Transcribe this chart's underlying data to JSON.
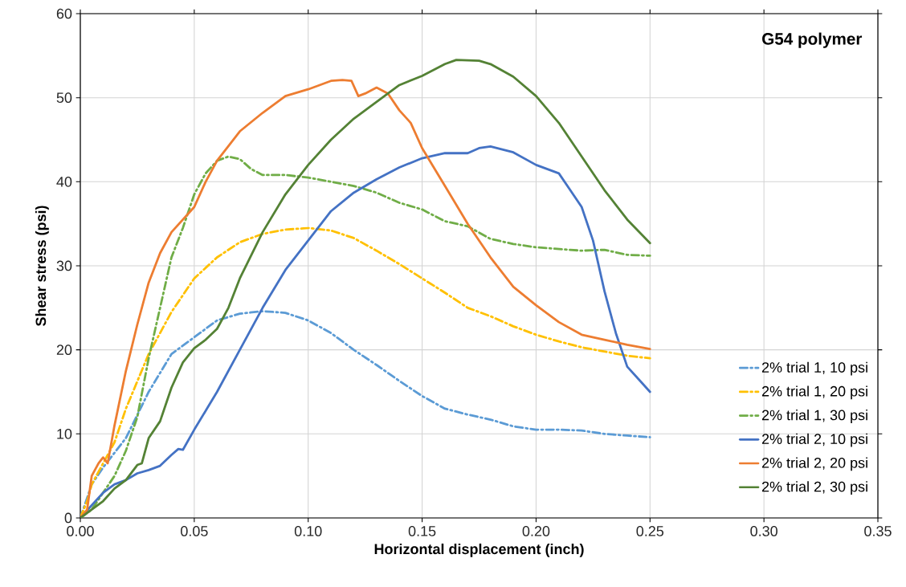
{
  "chart_data": {
    "type": "line",
    "title": "G54 polymer",
    "xlabel": "Horizontal displacement (inch)",
    "ylabel": "Shear stress (psi)",
    "xlim": [
      0,
      0.35
    ],
    "xticks": [
      {
        "value": 0,
        "label": "0.00"
      },
      {
        "value": 0.05,
        "label": "0.05"
      },
      {
        "value": 0.1,
        "label": "0.10"
      },
      {
        "value": 0.15,
        "label": "0.15"
      },
      {
        "value": 0.2,
        "label": "0.20"
      },
      {
        "value": 0.25,
        "label": "0.25"
      },
      {
        "value": 0.3,
        "label": "0.30"
      },
      {
        "value": 0.35,
        "label": "0.35"
      }
    ],
    "ylim": [
      0,
      60
    ],
    "yticks": [
      0,
      10,
      20,
      30,
      40,
      50,
      60
    ],
    "grid": true,
    "legend": "bottom right",
    "marker": "none",
    "series": [
      {
        "name": "2% trial 1, 10 psi",
        "color": "#5b9bd5",
        "line_style": "dashed",
        "x": [
          0,
          0.005,
          0.01,
          0.02,
          0.03,
          0.04,
          0.05,
          0.06,
          0.07,
          0.08,
          0.09,
          0.1,
          0.11,
          0.12,
          0.13,
          0.14,
          0.15,
          0.16,
          0.17,
          0.18,
          0.19,
          0.2,
          0.21,
          0.22,
          0.23,
          0.24,
          0.25
        ],
        "values": [
          0,
          4,
          6,
          9.5,
          15,
          19.5,
          21.5,
          23.5,
          24.3,
          24.6,
          24.4,
          23.5,
          22,
          20,
          18.2,
          16.3,
          14.5,
          13,
          12.3,
          11.7,
          10.9,
          10.5,
          10.5,
          10.4,
          10,
          9.8,
          9.6
        ]
      },
      {
        "name": "2% trial 1, 20 psi",
        "color": "#ffc000",
        "line_style": "dashed",
        "x": [
          0,
          0.003,
          0.005,
          0.01,
          0.015,
          0.02,
          0.03,
          0.04,
          0.05,
          0.06,
          0.07,
          0.08,
          0.09,
          0.1,
          0.11,
          0.12,
          0.13,
          0.14,
          0.15,
          0.16,
          0.17,
          0.18,
          0.19,
          0.2,
          0.21,
          0.22,
          0.23,
          0.24,
          0.25
        ],
        "values": [
          0,
          2,
          4,
          6.5,
          9,
          13,
          19.5,
          24.5,
          28.5,
          31,
          32.8,
          33.8,
          34.3,
          34.5,
          34.2,
          33.3,
          31.8,
          30.2,
          28.5,
          26.8,
          25,
          24,
          22.8,
          21.8,
          21,
          20.3,
          19.8,
          19.3,
          19
        ]
      },
      {
        "name": "2% trial 1, 30 psi",
        "color": "#70ad47",
        "line_style": "dashed",
        "x": [
          0,
          0.005,
          0.01,
          0.015,
          0.02,
          0.025,
          0.03,
          0.035,
          0.04,
          0.045,
          0.05,
          0.055,
          0.06,
          0.065,
          0.07,
          0.075,
          0.08,
          0.09,
          0.1,
          0.11,
          0.12,
          0.13,
          0.14,
          0.15,
          0.16,
          0.17,
          0.18,
          0.19,
          0.2,
          0.21,
          0.22,
          0.23,
          0.24,
          0.25
        ],
        "values": [
          0,
          1,
          3,
          5,
          8,
          12,
          19,
          25,
          31,
          34.5,
          38.5,
          41,
          42.5,
          43,
          42.7,
          41.5,
          40.8,
          40.8,
          40.5,
          40,
          39.5,
          38.7,
          37.5,
          36.7,
          35.3,
          34.7,
          33.2,
          32.6,
          32.2,
          32,
          31.8,
          31.9,
          31.3,
          31.2
        ]
      },
      {
        "name": "2% trial 2, 10 psi",
        "color": "#4472c4",
        "line_style": "solid",
        "x": [
          0,
          0.005,
          0.01,
          0.015,
          0.02,
          0.025,
          0.03,
          0.035,
          0.04,
          0.043,
          0.045,
          0.05,
          0.06,
          0.07,
          0.08,
          0.09,
          0.1,
          0.11,
          0.12,
          0.13,
          0.14,
          0.15,
          0.16,
          0.17,
          0.175,
          0.18,
          0.19,
          0.2,
          0.21,
          0.215,
          0.22,
          0.225,
          0.23,
          0.235,
          0.24,
          0.245,
          0.25
        ],
        "values": [
          0,
          1.5,
          3,
          4,
          4.5,
          5.3,
          5.7,
          6.2,
          7.5,
          8.2,
          8.1,
          10.5,
          15,
          20,
          25,
          29.5,
          33,
          36.5,
          38.7,
          40.3,
          41.7,
          42.8,
          43.4,
          43.4,
          44,
          44.2,
          43.5,
          42,
          41,
          39,
          37,
          33,
          27,
          22,
          18,
          16.5,
          15
        ]
      },
      {
        "name": "2% trial 2, 20 psi",
        "color": "#ed7d31",
        "line_style": "solid",
        "x": [
          0,
          0.003,
          0.005,
          0.008,
          0.01,
          0.012,
          0.015,
          0.02,
          0.025,
          0.03,
          0.035,
          0.04,
          0.05,
          0.055,
          0.06,
          0.07,
          0.08,
          0.09,
          0.1,
          0.11,
          0.115,
          0.119,
          0.122,
          0.125,
          0.13,
          0.135,
          0.14,
          0.145,
          0.15,
          0.16,
          0.17,
          0.18,
          0.19,
          0.2,
          0.21,
          0.22,
          0.23,
          0.24,
          0.25
        ],
        "values": [
          0,
          1,
          5,
          6.5,
          7.2,
          6.5,
          11,
          17.5,
          23,
          28,
          31.5,
          34,
          37,
          40,
          42.5,
          46,
          48.2,
          50.2,
          51,
          52,
          52.1,
          52,
          50.2,
          50.5,
          51.2,
          50.5,
          48.5,
          47,
          44,
          39.5,
          35,
          31,
          27.5,
          25.3,
          23.3,
          21.8,
          21.2,
          20.6,
          20.1
        ]
      },
      {
        "name": "2% trial 2, 30 psi",
        "color": "#548235",
        "line_style": "solid",
        "x": [
          0,
          0.01,
          0.015,
          0.02,
          0.025,
          0.027,
          0.03,
          0.035,
          0.04,
          0.045,
          0.05,
          0.055,
          0.06,
          0.065,
          0.07,
          0.08,
          0.09,
          0.1,
          0.11,
          0.12,
          0.13,
          0.14,
          0.15,
          0.16,
          0.165,
          0.175,
          0.18,
          0.19,
          0.2,
          0.21,
          0.22,
          0.23,
          0.24,
          0.25
        ],
        "values": [
          0,
          2,
          3.5,
          4.5,
          6.3,
          6.5,
          9.5,
          11.5,
          15.5,
          18.5,
          20.2,
          21.2,
          22.5,
          25,
          28.5,
          34,
          38.5,
          42,
          45,
          47.5,
          49.5,
          51.5,
          52.6,
          54,
          54.5,
          54.4,
          54,
          52.5,
          50.2,
          47,
          43,
          39,
          35.5,
          32.7
        ]
      }
    ]
  }
}
